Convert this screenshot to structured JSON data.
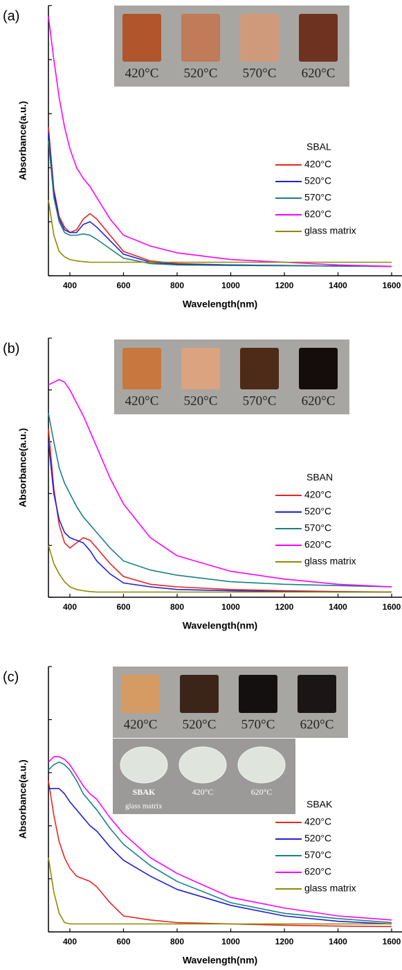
{
  "chart_data": [
    {
      "type": "line",
      "panel_label": "(a)",
      "x_label": "Wavelength(nm)",
      "y_label": "Absorbance(a.u.)",
      "xlim": [
        320,
        1600
      ],
      "xticks": [
        400,
        600,
        800,
        1000,
        1200,
        1400,
        1600
      ],
      "ylim": [
        0,
        10
      ],
      "yticks": [
        0,
        2,
        4,
        6,
        8,
        10
      ],
      "legend_title": "SBAL",
      "inset_labels": [
        "420°C",
        "520°C",
        "570°C",
        "620°C"
      ],
      "x": [
        320,
        340,
        360,
        380,
        400,
        425,
        450,
        475,
        500,
        550,
        600,
        700,
        800,
        1000,
        1200,
        1400,
        1600
      ],
      "series": [
        {
          "name": "420°C",
          "color": "#e8251f",
          "values": [
            5.5,
            3.2,
            2.2,
            1.8,
            1.6,
            1.7,
            2.1,
            2.3,
            2.1,
            1.5,
            0.9,
            0.55,
            0.45,
            0.4,
            0.38,
            0.36,
            0.35
          ]
        },
        {
          "name": "520°C",
          "color": "#1f1fd6",
          "values": [
            5.3,
            3.1,
            2.1,
            1.7,
            1.6,
            1.6,
            1.9,
            2.0,
            1.8,
            1.3,
            0.8,
            0.5,
            0.42,
            0.4,
            0.38,
            0.36,
            0.35
          ]
        },
        {
          "name": "570°C",
          "color": "#1a8080",
          "values": [
            5.0,
            2.9,
            2.0,
            1.6,
            1.5,
            1.5,
            1.55,
            1.5,
            1.35,
            1.0,
            0.65,
            0.45,
            0.4,
            0.38,
            0.37,
            0.36,
            0.35
          ]
        },
        {
          "name": "620°C",
          "color": "#ff00ff",
          "values": [
            9.6,
            8.0,
            6.6,
            5.5,
            4.7,
            4.0,
            3.6,
            3.3,
            2.9,
            2.1,
            1.5,
            1.1,
            0.85,
            0.6,
            0.5,
            0.4,
            0.35
          ]
        },
        {
          "name": "glass matrix",
          "color": "#8b8b00",
          "values": [
            2.8,
            1.5,
            0.9,
            0.7,
            0.6,
            0.55,
            0.52,
            0.5,
            0.5,
            0.5,
            0.5,
            0.5,
            0.5,
            0.5,
            0.5,
            0.5,
            0.5
          ]
        }
      ]
    },
    {
      "type": "line",
      "panel_label": "(b)",
      "x_label": "Wavelength(nm)",
      "y_label": "Absorbance(a.u.)",
      "xlim": [
        320,
        1600
      ],
      "xticks": [
        400,
        600,
        800,
        1000,
        1200,
        1400,
        1600
      ],
      "ylim": [
        0,
        10
      ],
      "yticks": [
        0,
        2,
        4,
        6,
        8,
        10
      ],
      "legend_title": "SBAN",
      "inset_labels": [
        "420°C",
        "520°C",
        "570°C",
        "620°C"
      ],
      "x": [
        320,
        340,
        360,
        380,
        400,
        425,
        450,
        475,
        500,
        550,
        600,
        700,
        800,
        1000,
        1200,
        1400,
        1600
      ],
      "series": [
        {
          "name": "420°C",
          "color": "#e8251f",
          "values": [
            6.5,
            4.2,
            2.8,
            2.1,
            1.9,
            2.1,
            2.3,
            2.2,
            1.9,
            1.3,
            0.8,
            0.5,
            0.4,
            0.3,
            0.25,
            0.22,
            0.2
          ]
        },
        {
          "name": "520°C",
          "color": "#1f1fd6",
          "values": [
            6.0,
            4.0,
            3.0,
            2.5,
            2.3,
            2.2,
            2.1,
            1.8,
            1.4,
            0.9,
            0.55,
            0.4,
            0.3,
            0.25,
            0.22,
            0.2,
            0.2
          ]
        },
        {
          "name": "570°C",
          "color": "#1a8080",
          "values": [
            7.1,
            6.0,
            5.0,
            4.4,
            4.0,
            3.5,
            3.1,
            2.8,
            2.5,
            1.9,
            1.4,
            1.05,
            0.85,
            0.6,
            0.5,
            0.45,
            0.4
          ]
        },
        {
          "name": "620°C",
          "color": "#ff00ff",
          "values": [
            8.2,
            8.3,
            8.4,
            8.3,
            8.0,
            7.5,
            7.0,
            6.4,
            5.8,
            4.6,
            3.6,
            2.3,
            1.6,
            1.0,
            0.7,
            0.5,
            0.4
          ]
        },
        {
          "name": "glass matrix",
          "color": "#8b8b00",
          "values": [
            2.0,
            1.3,
            0.9,
            0.6,
            0.4,
            0.3,
            0.25,
            0.22,
            0.2,
            0.2,
            0.2,
            0.2,
            0.2,
            0.2,
            0.2,
            0.2,
            0.2
          ]
        }
      ]
    },
    {
      "type": "line",
      "panel_label": "(c)",
      "x_label": "Wavelength(nm)",
      "y_label": "Absorbance(a.u.)",
      "xlim": [
        320,
        1600
      ],
      "xticks": [
        400,
        600,
        800,
        1000,
        1200,
        1400,
        1600
      ],
      "ylim": [
        0,
        10
      ],
      "yticks": [
        0,
        2,
        4,
        6,
        8,
        10
      ],
      "legend_title": "SBAK",
      "inset_labels": [
        "420°C",
        "520°C",
        "570°C",
        "620°C"
      ],
      "inset2_labels": [
        "SBAK",
        "420°C",
        "620°C"
      ],
      "inset2_caption": "glass matrix",
      "x": [
        320,
        340,
        360,
        380,
        400,
        425,
        450,
        475,
        500,
        550,
        600,
        700,
        800,
        1000,
        1200,
        1400,
        1600
      ],
      "series": [
        {
          "name": "420°C",
          "color": "#e8251f",
          "values": [
            5.7,
            4.4,
            3.4,
            2.8,
            2.4,
            2.1,
            2.0,
            1.9,
            1.7,
            1.1,
            0.6,
            0.45,
            0.35,
            0.3,
            0.25,
            0.22,
            0.2
          ]
        },
        {
          "name": "520°C",
          "color": "#1f1fd6",
          "values": [
            5.4,
            5.4,
            5.4,
            5.2,
            4.9,
            4.6,
            4.3,
            4.0,
            3.8,
            3.2,
            2.7,
            2.1,
            1.6,
            1.0,
            0.6,
            0.4,
            0.3
          ]
        },
        {
          "name": "570°C",
          "color": "#1a8080",
          "values": [
            6.1,
            6.3,
            6.4,
            6.3,
            6.1,
            5.7,
            5.2,
            4.9,
            4.6,
            3.9,
            3.3,
            2.5,
            1.9,
            1.1,
            0.7,
            0.5,
            0.35
          ]
        },
        {
          "name": "620°C",
          "color": "#ff00ff",
          "values": [
            6.4,
            6.6,
            6.6,
            6.5,
            6.3,
            5.9,
            5.5,
            5.2,
            5.0,
            4.3,
            3.7,
            2.8,
            2.2,
            1.3,
            0.9,
            0.6,
            0.45
          ]
        },
        {
          "name": "glass matrix",
          "color": "#8b8b00",
          "values": [
            2.8,
            1.5,
            0.7,
            0.35,
            0.3,
            0.3,
            0.3,
            0.3,
            0.3,
            0.3,
            0.3,
            0.3,
            0.3,
            0.3,
            0.3,
            0.3,
            0.3
          ]
        }
      ]
    }
  ]
}
